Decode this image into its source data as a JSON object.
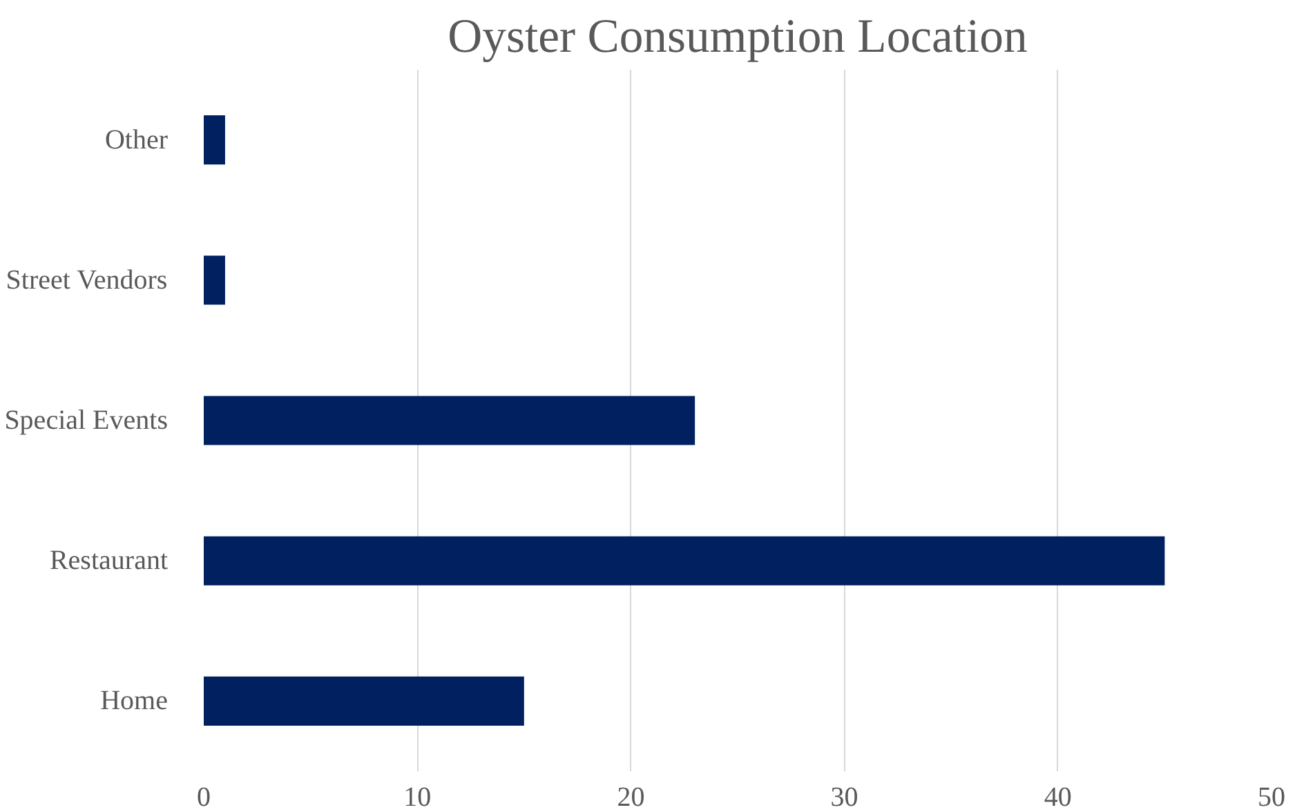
{
  "chart_data": {
    "type": "bar",
    "orientation": "horizontal",
    "title": "Oyster Consumption Location",
    "categories": [
      "Other",
      "Street Vendors",
      "Special Events",
      "Restaurant",
      "Home"
    ],
    "values": [
      1,
      1,
      23,
      45,
      15
    ],
    "color": "#002060",
    "xlim": [
      0,
      50
    ],
    "xticks": [
      0,
      10,
      20,
      30,
      40,
      50
    ],
    "grid": "x"
  }
}
